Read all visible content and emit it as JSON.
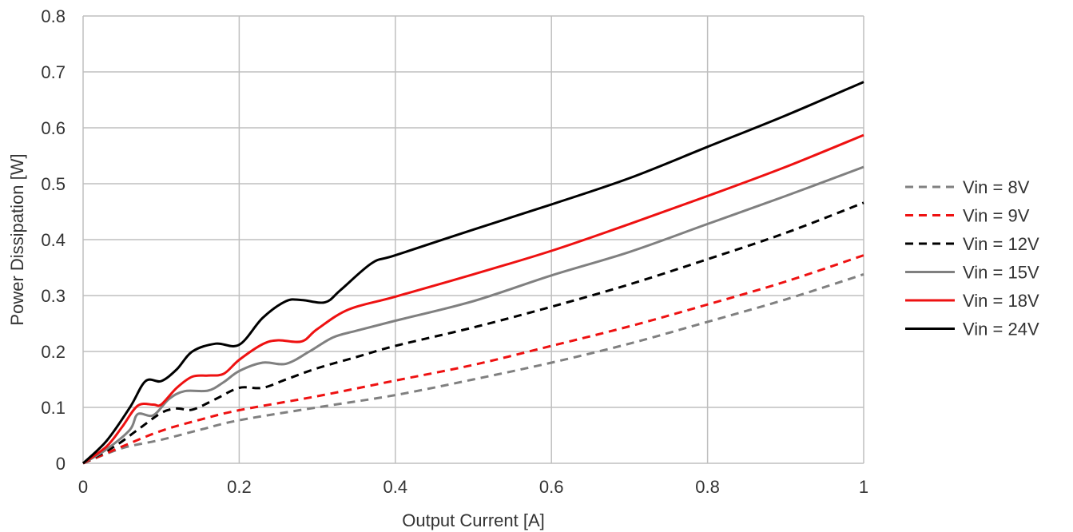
{
  "chart_data": {
    "type": "line",
    "title": "",
    "xlabel": "Output Current [A]",
    "ylabel": "Power Dissipation [W]",
    "xlim": [
      0,
      1
    ],
    "ylim": [
      0,
      0.8
    ],
    "x_ticks": [
      0,
      0.2,
      0.4,
      0.6,
      0.8,
      1
    ],
    "x_tick_labels": [
      "0",
      "0.2",
      "0.4",
      "0.6",
      "0.8",
      "1"
    ],
    "y_ticks": [
      0,
      0.1,
      0.2,
      0.3,
      0.4,
      0.5,
      0.6,
      0.7,
      0.8
    ],
    "y_tick_labels": [
      "0",
      "0.1",
      "0.2",
      "0.3",
      "0.4",
      "0.5",
      "0.6",
      "0.7",
      "0.8"
    ],
    "grid": true,
    "legend_position": "right",
    "series": [
      {
        "name": "Vin = 8V",
        "color": "#808080",
        "dash": "dashed",
        "points": [
          [
            0,
            0
          ],
          [
            0.05,
            0.027
          ],
          [
            0.1,
            0.042
          ],
          [
            0.15,
            0.06
          ],
          [
            0.2,
            0.077
          ],
          [
            0.3,
            0.1
          ],
          [
            0.4,
            0.122
          ],
          [
            0.5,
            0.15
          ],
          [
            0.6,
            0.18
          ],
          [
            0.7,
            0.214
          ],
          [
            0.8,
            0.253
          ],
          [
            0.9,
            0.293
          ],
          [
            1,
            0.338
          ]
        ]
      },
      {
        "name": "Vin = 9V",
        "color": "#ee1111",
        "dash": "dashed",
        "points": [
          [
            0,
            0
          ],
          [
            0.05,
            0.03
          ],
          [
            0.1,
            0.058
          ],
          [
            0.15,
            0.078
          ],
          [
            0.2,
            0.095
          ],
          [
            0.3,
            0.12
          ],
          [
            0.4,
            0.148
          ],
          [
            0.5,
            0.176
          ],
          [
            0.6,
            0.21
          ],
          [
            0.7,
            0.245
          ],
          [
            0.8,
            0.284
          ],
          [
            0.9,
            0.325
          ],
          [
            1,
            0.372
          ]
        ]
      },
      {
        "name": "Vin = 12V",
        "color": "#000000",
        "dash": "dashed",
        "points": [
          [
            0,
            0
          ],
          [
            0.04,
            0.03
          ],
          [
            0.07,
            0.06
          ],
          [
            0.1,
            0.09
          ],
          [
            0.12,
            0.098
          ],
          [
            0.14,
            0.096
          ],
          [
            0.17,
            0.115
          ],
          [
            0.2,
            0.135
          ],
          [
            0.23,
            0.135
          ],
          [
            0.26,
            0.15
          ],
          [
            0.3,
            0.17
          ],
          [
            0.35,
            0.19
          ],
          [
            0.4,
            0.21
          ],
          [
            0.5,
            0.243
          ],
          [
            0.6,
            0.28
          ],
          [
            0.7,
            0.32
          ],
          [
            0.8,
            0.365
          ],
          [
            0.9,
            0.412
          ],
          [
            1,
            0.466
          ]
        ]
      },
      {
        "name": "Vin = 15V",
        "color": "#808080",
        "dash": "solid",
        "points": [
          [
            0,
            0
          ],
          [
            0.03,
            0.025
          ],
          [
            0.06,
            0.06
          ],
          [
            0.07,
            0.088
          ],
          [
            0.09,
            0.086
          ],
          [
            0.11,
            0.115
          ],
          [
            0.13,
            0.129
          ],
          [
            0.16,
            0.13
          ],
          [
            0.18,
            0.145
          ],
          [
            0.2,
            0.165
          ],
          [
            0.23,
            0.18
          ],
          [
            0.26,
            0.178
          ],
          [
            0.29,
            0.2
          ],
          [
            0.32,
            0.225
          ],
          [
            0.35,
            0.237
          ],
          [
            0.4,
            0.255
          ],
          [
            0.5,
            0.29
          ],
          [
            0.6,
            0.336
          ],
          [
            0.7,
            0.378
          ],
          [
            0.8,
            0.428
          ],
          [
            0.9,
            0.478
          ],
          [
            1,
            0.53
          ]
        ]
      },
      {
        "name": "Vin = 18V",
        "color": "#ee1111",
        "dash": "solid",
        "points": [
          [
            0,
            0
          ],
          [
            0.03,
            0.03
          ],
          [
            0.05,
            0.065
          ],
          [
            0.07,
            0.103
          ],
          [
            0.09,
            0.105
          ],
          [
            0.1,
            0.105
          ],
          [
            0.12,
            0.135
          ],
          [
            0.14,
            0.155
          ],
          [
            0.16,
            0.157
          ],
          [
            0.18,
            0.16
          ],
          [
            0.2,
            0.185
          ],
          [
            0.23,
            0.213
          ],
          [
            0.25,
            0.22
          ],
          [
            0.28,
            0.218
          ],
          [
            0.3,
            0.24
          ],
          [
            0.34,
            0.275
          ],
          [
            0.4,
            0.298
          ],
          [
            0.5,
            0.338
          ],
          [
            0.6,
            0.38
          ],
          [
            0.7,
            0.428
          ],
          [
            0.8,
            0.478
          ],
          [
            0.9,
            0.53
          ],
          [
            1,
            0.587
          ]
        ]
      },
      {
        "name": "Vin = 24V",
        "color": "#000000",
        "dash": "solid",
        "points": [
          [
            0,
            0
          ],
          [
            0.03,
            0.04
          ],
          [
            0.06,
            0.1
          ],
          [
            0.08,
            0.147
          ],
          [
            0.1,
            0.147
          ],
          [
            0.12,
            0.168
          ],
          [
            0.14,
            0.2
          ],
          [
            0.17,
            0.214
          ],
          [
            0.2,
            0.212
          ],
          [
            0.23,
            0.26
          ],
          [
            0.26,
            0.29
          ],
          [
            0.28,
            0.292
          ],
          [
            0.31,
            0.288
          ],
          [
            0.33,
            0.31
          ],
          [
            0.37,
            0.358
          ],
          [
            0.4,
            0.372
          ],
          [
            0.5,
            0.418
          ],
          [
            0.6,
            0.463
          ],
          [
            0.7,
            0.51
          ],
          [
            0.8,
            0.566
          ],
          [
            0.9,
            0.622
          ],
          [
            1,
            0.682
          ]
        ]
      }
    ]
  }
}
